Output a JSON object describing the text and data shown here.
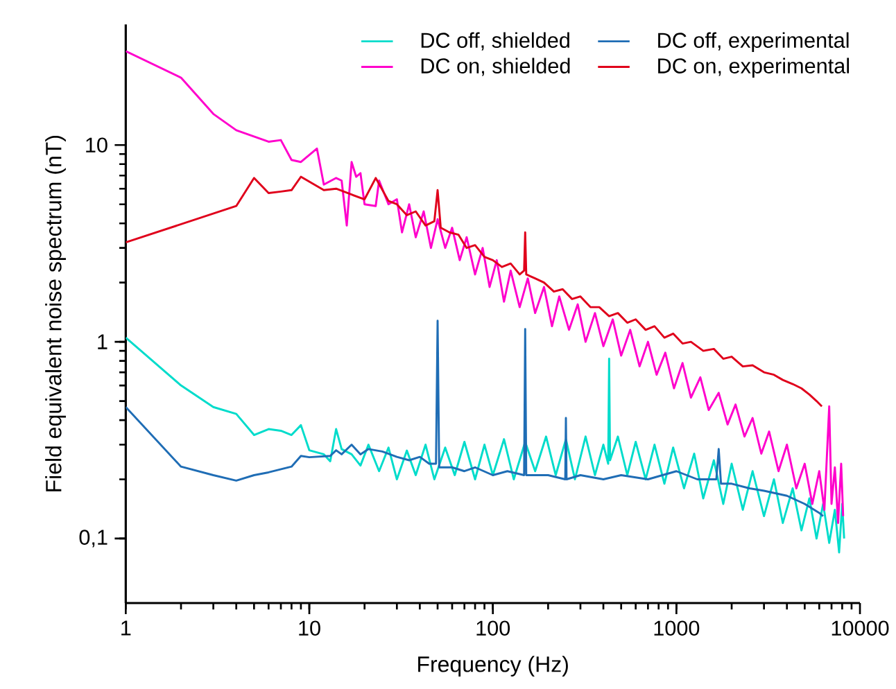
{
  "chart_data": {
    "type": "line",
    "xlabel": "Frequency (Hz)",
    "ylabel": "Field equivalent noise spectrum (nT)",
    "log": "xy",
    "xlim": [
      1,
      10000
    ],
    "ylim": [
      0.047,
      41
    ],
    "xticks": [
      1,
      10,
      100,
      1000,
      10000
    ],
    "yticks": [
      {
        "value": 0.1,
        "label": "0,1"
      },
      1,
      10
    ],
    "legend": "top right",
    "marker": "none",
    "line_style": "solid",
    "grid": false,
    "series": [
      {
        "name": "DC off, shielded",
        "color": "#00dccb",
        "x": [
          1,
          2,
          3,
          4,
          5,
          6,
          7,
          8,
          9,
          10,
          12,
          13,
          14,
          15,
          17,
          19,
          21,
          24,
          27,
          30,
          34,
          38,
          43,
          48,
          55,
          62,
          70,
          80,
          90,
          100,
          115,
          130,
          150,
          170,
          195,
          220,
          250,
          280,
          320,
          360,
          400,
          425,
          430,
          435,
          480,
          540,
          600,
          680,
          760,
          860,
          960,
          1100,
          1250,
          1400,
          1600,
          1800,
          2000,
          2300,
          2600,
          3000,
          3400,
          3800,
          4300,
          4800,
          5300,
          5800,
          6300,
          6800,
          7300,
          7700,
          8000,
          8200
        ],
        "values": [
          1.05,
          0.6,
          0.466,
          0.43,
          0.336,
          0.36,
          0.353,
          0.336,
          0.377,
          0.281,
          0.268,
          0.247,
          0.36,
          0.285,
          0.268,
          0.235,
          0.3,
          0.22,
          0.29,
          0.2,
          0.28,
          0.21,
          0.3,
          0.2,
          0.29,
          0.21,
          0.31,
          0.2,
          0.3,
          0.21,
          0.32,
          0.2,
          0.31,
          0.22,
          0.33,
          0.21,
          0.32,
          0.2,
          0.33,
          0.21,
          0.3,
          0.24,
          0.82,
          0.25,
          0.33,
          0.21,
          0.31,
          0.2,
          0.3,
          0.19,
          0.29,
          0.18,
          0.27,
          0.16,
          0.25,
          0.15,
          0.24,
          0.14,
          0.22,
          0.13,
          0.2,
          0.12,
          0.18,
          0.11,
          0.16,
          0.1,
          0.15,
          0.095,
          0.14,
          0.085,
          0.15,
          0.1
        ]
      },
      {
        "name": "DC off, experimental",
        "color": "#1f6db5",
        "x": [
          1,
          2,
          3,
          4,
          5,
          6,
          8,
          9,
          10,
          13,
          14,
          15,
          17,
          19,
          21,
          25,
          30,
          35,
          40,
          45,
          49,
          50,
          51,
          60,
          70,
          80,
          100,
          120,
          148,
          150,
          152,
          200,
          248,
          250,
          252,
          300,
          400,
          500,
          700,
          1000,
          1300,
          1650,
          1700,
          1750,
          2000,
          2500,
          3000,
          4000,
          5000,
          6000,
          6300
        ],
        "values": [
          0.466,
          0.232,
          0.21,
          0.197,
          0.21,
          0.217,
          0.232,
          0.263,
          0.259,
          0.263,
          0.281,
          0.268,
          0.3,
          0.268,
          0.285,
          0.277,
          0.26,
          0.25,
          0.26,
          0.24,
          0.24,
          1.28,
          0.23,
          0.23,
          0.22,
          0.23,
          0.21,
          0.22,
          0.21,
          1.16,
          0.21,
          0.21,
          0.2,
          0.41,
          0.2,
          0.21,
          0.2,
          0.21,
          0.2,
          0.22,
          0.2,
          0.2,
          0.285,
          0.19,
          0.19,
          0.18,
          0.175,
          0.165,
          0.15,
          0.135,
          0.13
        ]
      },
      {
        "name": "DC on, shielded",
        "color": "#ff00cc",
        "x": [
          1,
          2,
          3,
          4,
          6,
          7,
          8,
          9,
          11,
          12,
          14,
          15,
          16,
          17,
          18,
          19,
          20,
          23,
          24,
          27,
          30,
          32,
          35,
          38,
          42,
          46,
          50,
          55,
          60,
          66,
          72,
          80,
          88,
          96,
          105,
          115,
          125,
          140,
          155,
          170,
          190,
          210,
          230,
          260,
          290,
          320,
          360,
          400,
          450,
          500,
          560,
          630,
          700,
          780,
          870,
          970,
          1080,
          1200,
          1350,
          1500,
          1700,
          1900,
          2100,
          2350,
          2600,
          2900,
          3200,
          3600,
          4000,
          4500,
          5000,
          5500,
          6000,
          6400,
          6800,
          7000,
          7300,
          7600,
          7900,
          8100
        ],
        "values": [
          30,
          22,
          14.4,
          11.9,
          10.4,
          10.6,
          8.4,
          8.2,
          9.6,
          6.3,
          6.8,
          6.6,
          3.9,
          8.2,
          6.9,
          7.2,
          5.0,
          4.9,
          6.6,
          5.0,
          5.3,
          3.6,
          5.0,
          3.4,
          4.6,
          3.0,
          4.2,
          3.0,
          3.8,
          2.6,
          3.4,
          2.2,
          3.0,
          1.9,
          2.6,
          1.6,
          2.3,
          1.5,
          2.1,
          1.4,
          1.9,
          1.2,
          1.7,
          1.15,
          1.55,
          1.0,
          1.4,
          0.95,
          1.3,
          0.85,
          1.15,
          0.75,
          1.0,
          0.68,
          0.88,
          0.58,
          0.78,
          0.52,
          0.66,
          0.45,
          0.55,
          0.38,
          0.48,
          0.33,
          0.41,
          0.27,
          0.35,
          0.22,
          0.3,
          0.18,
          0.24,
          0.15,
          0.22,
          0.14,
          0.47,
          0.15,
          0.23,
          0.12,
          0.24,
          0.13
        ]
      },
      {
        "name": "DC on, experimental",
        "color": "#e0001b",
        "x": [
          1,
          4,
          5,
          6,
          7,
          8,
          9,
          12,
          14,
          17,
          20,
          23,
          27,
          30,
          34,
          38,
          43,
          48,
          50,
          52,
          58,
          65,
          72,
          80,
          90,
          100,
          112,
          125,
          140,
          148,
          150,
          152,
          170,
          190,
          215,
          240,
          270,
          300,
          340,
          380,
          430,
          480,
          540,
          600,
          680,
          760,
          860,
          960,
          1080,
          1200,
          1400,
          1600,
          1800,
          2000,
          2300,
          2600,
          3000,
          3400,
          3800,
          4300,
          4800,
          5300,
          5800,
          6200
        ],
        "values": [
          3.2,
          4.9,
          6.8,
          5.7,
          5.8,
          5.9,
          6.9,
          5.9,
          6.0,
          5.6,
          5.3,
          6.8,
          5.2,
          5.0,
          4.4,
          4.6,
          3.9,
          4.1,
          5.9,
          3.8,
          3.6,
          3.5,
          3.0,
          3.1,
          2.7,
          2.6,
          2.4,
          2.5,
          2.2,
          2.3,
          3.6,
          2.2,
          2.1,
          2.0,
          1.8,
          1.85,
          1.65,
          1.7,
          1.5,
          1.5,
          1.35,
          1.4,
          1.25,
          1.3,
          1.15,
          1.2,
          1.05,
          1.1,
          0.98,
          1.0,
          0.9,
          0.92,
          0.82,
          0.84,
          0.75,
          0.76,
          0.7,
          0.68,
          0.64,
          0.61,
          0.58,
          0.54,
          0.5,
          0.47
        ]
      }
    ]
  }
}
